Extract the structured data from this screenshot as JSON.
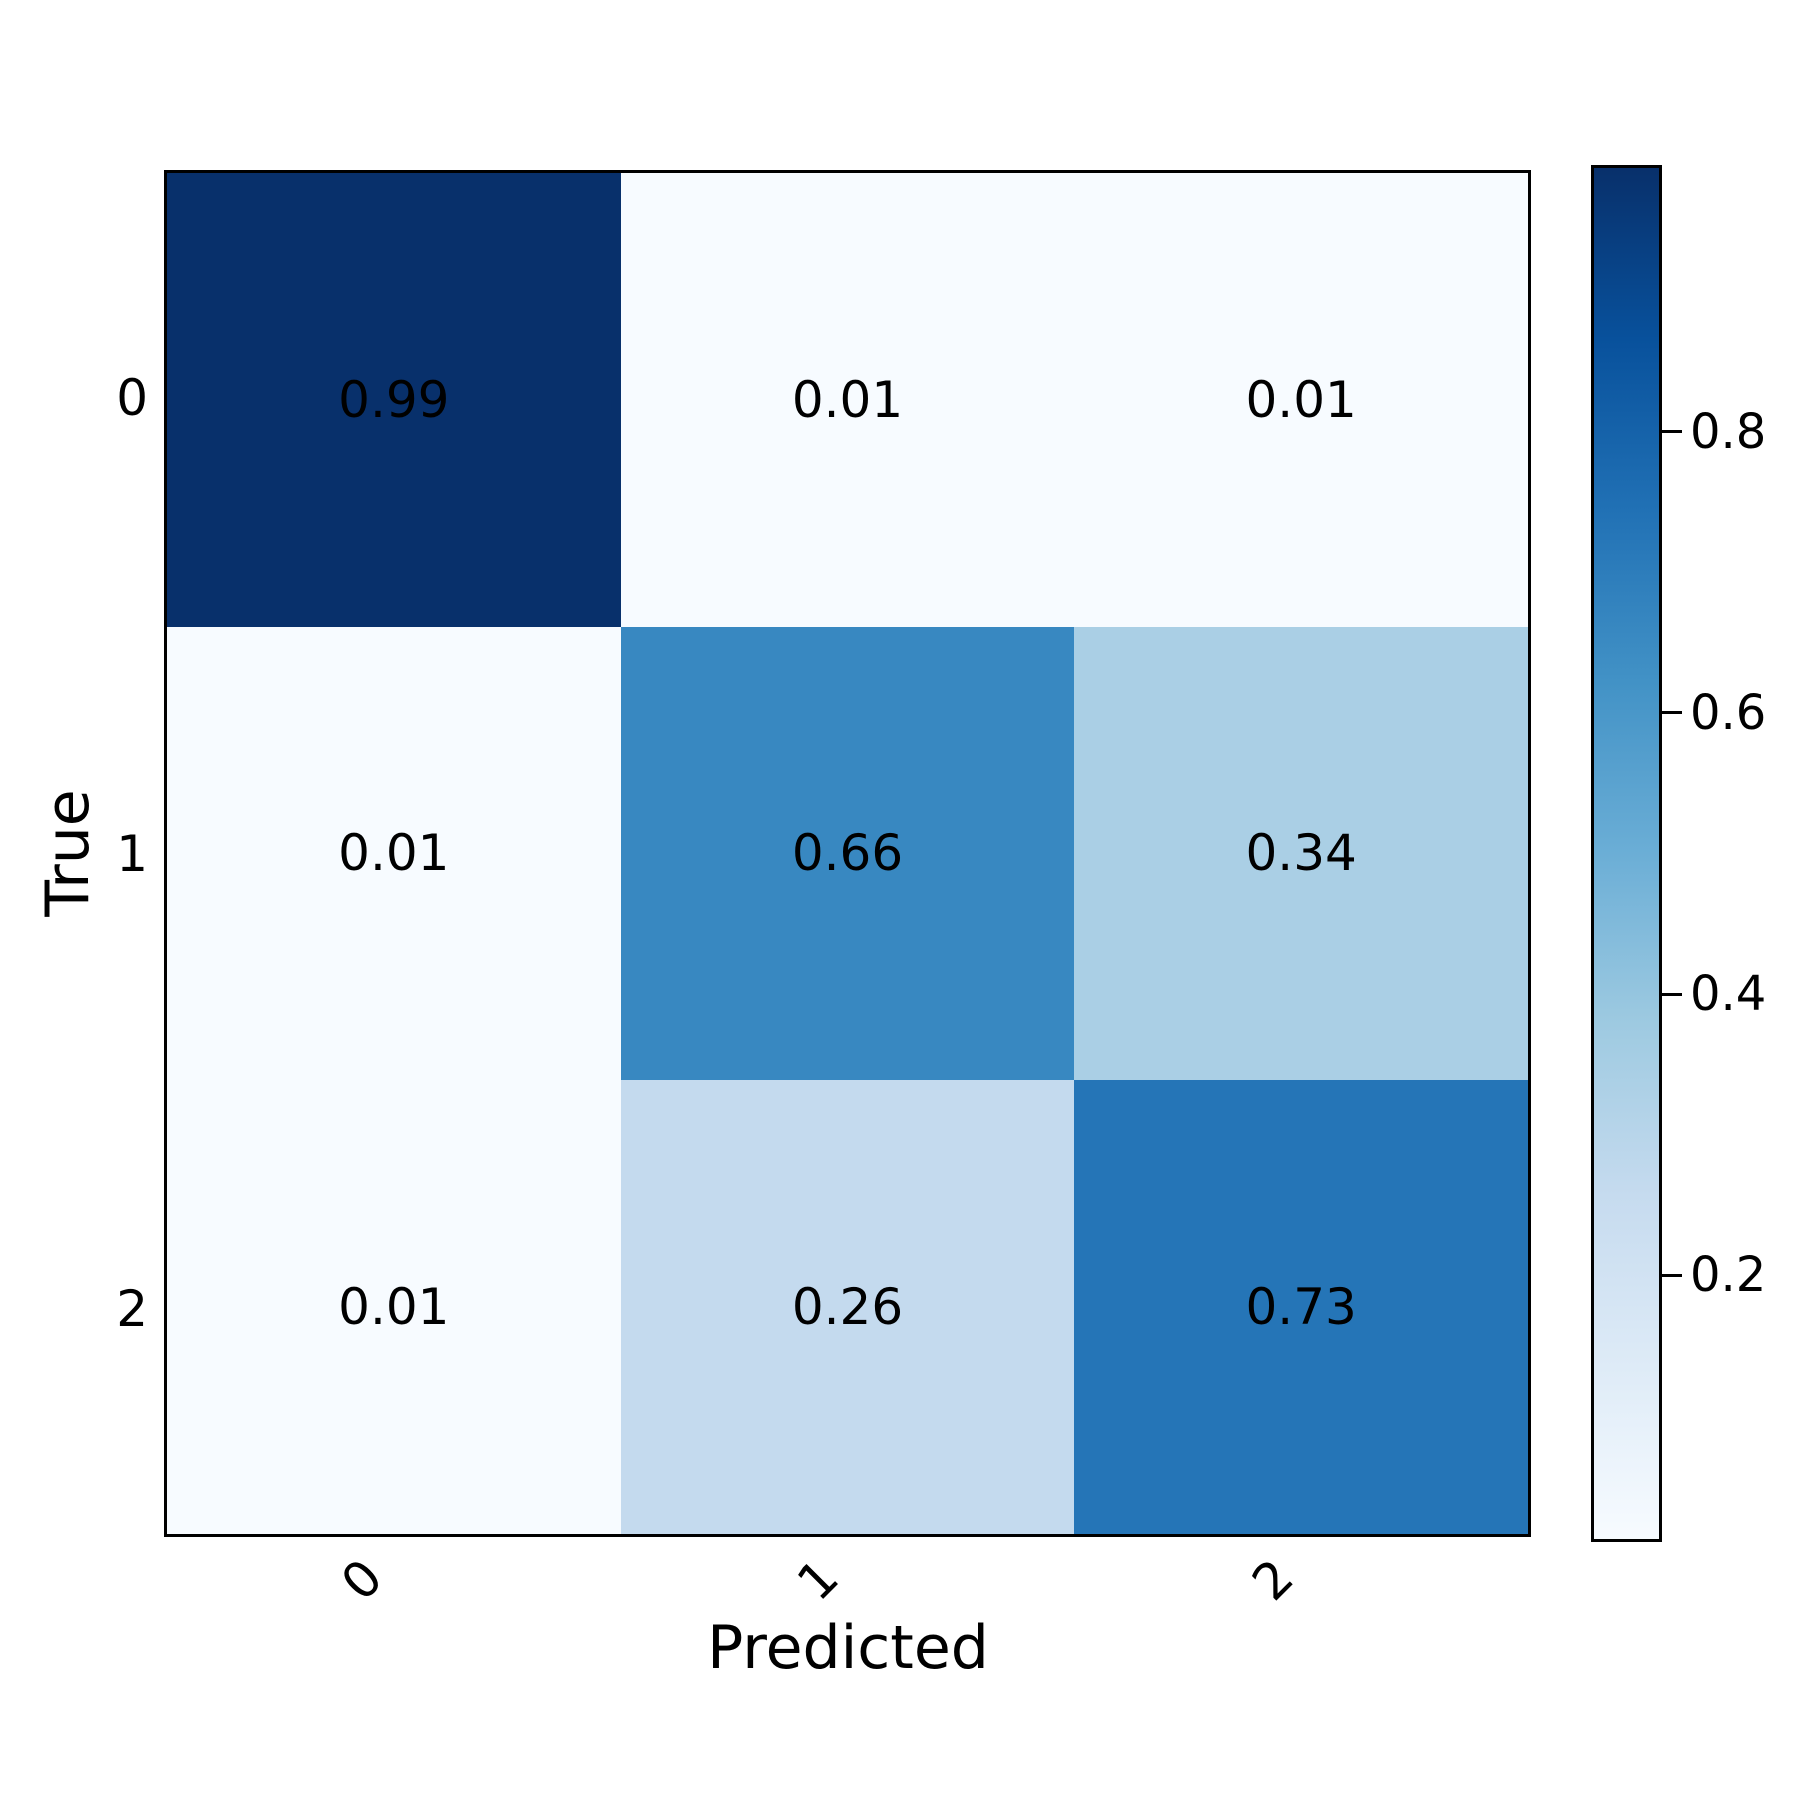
{
  "figure": {
    "background": "#ffffff",
    "axes_edge_color": "#000000",
    "text_color": "#000000"
  },
  "chart_data": {
    "type": "heatmap",
    "title": "",
    "xlabel": "Predicted",
    "ylabel": "True",
    "x_categories": [
      "0",
      "1",
      "2"
    ],
    "y_categories": [
      "0",
      "1",
      "2"
    ],
    "matrix": [
      [
        0.99,
        0.01,
        0.01
      ],
      [
        0.01,
        0.66,
        0.34
      ],
      [
        0.01,
        0.26,
        0.73
      ]
    ],
    "cell_labels": [
      [
        "0.99",
        "0.01",
        "0.01"
      ],
      [
        "0.01",
        "0.66",
        "0.34"
      ],
      [
        "0.01",
        "0.26",
        "0.73"
      ]
    ],
    "scale": {
      "vmin": 0.01,
      "vmax": 0.99
    },
    "colormap": {
      "name": "Blues",
      "anchors": [
        "#f7fbff",
        "#deebf7",
        "#c6dbef",
        "#9ecae1",
        "#6baed6",
        "#4292c6",
        "#2171b5",
        "#08519c",
        "#08306b"
      ]
    },
    "colorbar": {
      "position": "right",
      "tick_values": [
        0.2,
        0.4,
        0.6,
        0.8
      ],
      "tick_labels": [
        "0.2",
        "0.4",
        "0.6",
        "0.8"
      ]
    },
    "grid": false,
    "legend_position": "none"
  }
}
